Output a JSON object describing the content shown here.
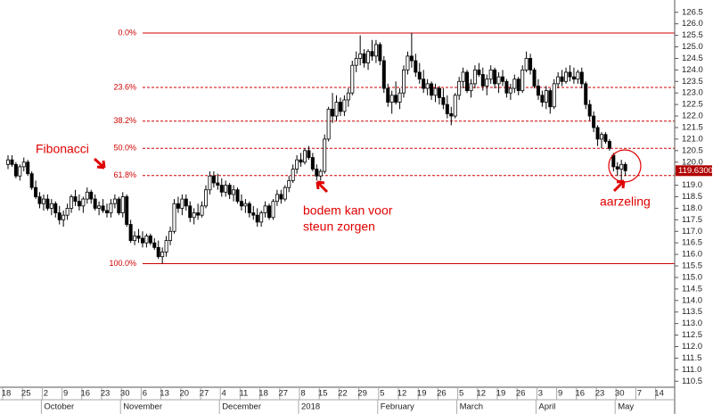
{
  "chart_data": {
    "type": "candlestick",
    "ylim": [
      110.2,
      126.8
    ],
    "yticks": [
      126.5,
      {
        "value": 126,
        "label": "126.0"
      },
      125.5,
      {
        "value": 125,
        "label": "125.0"
      },
      124.5,
      {
        "value": 124,
        "label": "124.0"
      },
      123.5,
      {
        "value": 123,
        "label": "123.0"
      },
      122.5,
      {
        "value": 122,
        "label": "122.0"
      },
      121.5,
      {
        "value": 121,
        "label": "121.0"
      },
      120.5,
      {
        "value": 120,
        "label": "120.0"
      },
      119.5,
      {
        "value": 119,
        "label": "119.0"
      },
      118.5,
      {
        "value": 118,
        "label": "118.0"
      },
      117.5,
      {
        "value": 117,
        "label": "117.0"
      },
      116.5,
      {
        "value": 116,
        "label": "116.0"
      },
      115.5,
      {
        "value": 115,
        "label": "115.0"
      },
      114.5,
      {
        "value": 114,
        "label": "114.0"
      },
      113.5,
      {
        "value": 113,
        "label": "113.0"
      },
      112.5,
      {
        "value": 112,
        "label": "112.0"
      },
      111.5,
      {
        "value": 111,
        "label": "111.0"
      },
      110.5
    ],
    "week_labels": [
      "18",
      "25",
      "2",
      "9",
      "16",
      "23",
      "30",
      "6",
      "13",
      "20",
      "27",
      "4",
      "11",
      "18",
      "27",
      "8",
      "15",
      "22",
      "29",
      "5",
      "12",
      "19",
      "26",
      "5",
      "12",
      "19",
      "26",
      "3",
      "9",
      "16",
      "23",
      "30",
      "7",
      "14"
    ],
    "month_labels": [
      null,
      null,
      "October",
      null,
      null,
      null,
      "November",
      null,
      null,
      null,
      null,
      "December",
      null,
      null,
      null,
      "2018",
      null,
      null,
      null,
      "February",
      null,
      null,
      null,
      "March",
      null,
      null,
      null,
      "April",
      null,
      null,
      null,
      "May",
      null,
      null
    ],
    "fib_levels": [
      {
        "label": "0.0%",
        "value": 125.6,
        "style": "solid"
      },
      {
        "label": "23.6%",
        "value": 123.24,
        "style": "dashed"
      },
      {
        "label": "38.2%",
        "value": 121.78,
        "style": "dashed"
      },
      {
        "label": "50.0%",
        "value": 120.6,
        "style": "dashed"
      },
      {
        "label": "61.8%",
        "value": 119.42,
        "style": "dashed"
      },
      {
        "label": "100.0%",
        "value": 115.6,
        "style": "solid"
      }
    ],
    "fib_color": "#d00000",
    "up_color": "#ffffff",
    "down_color": "#000000",
    "last_price": {
      "value": 119.63,
      "label": "119.6300"
    },
    "annotations": [
      "Fibonacci",
      "bodem kan voor",
      "steun zorgen",
      "aarzeling"
    ],
    "ohlc": [
      [
        119.9,
        120.3,
        119.7,
        120.1
      ],
      [
        120.1,
        120.3,
        119.8,
        119.9
      ],
      [
        119.9,
        120.0,
        119.3,
        119.4
      ],
      [
        119.4,
        119.9,
        119.2,
        119.8
      ],
      [
        119.8,
        120.2,
        119.6,
        120.0
      ],
      [
        120.0,
        120.1,
        119.4,
        119.5
      ],
      [
        119.5,
        119.6,
        118.8,
        118.9
      ],
      [
        118.9,
        119.2,
        118.4,
        118.5
      ],
      [
        118.5,
        118.7,
        118.0,
        118.2
      ],
      [
        118.2,
        118.6,
        117.9,
        118.4
      ],
      [
        118.4,
        118.6,
        117.9,
        118.0
      ],
      [
        118.0,
        118.4,
        117.7,
        118.2
      ],
      [
        118.2,
        118.3,
        117.6,
        117.8
      ],
      [
        117.8,
        118.1,
        117.3,
        117.5
      ],
      [
        117.5,
        117.9,
        117.2,
        117.7
      ],
      [
        117.7,
        118.2,
        117.5,
        118.0
      ],
      [
        118.0,
        118.6,
        117.8,
        118.5
      ],
      [
        118.5,
        118.8,
        118.1,
        118.3
      ],
      [
        118.3,
        118.6,
        117.9,
        118.1
      ],
      [
        118.1,
        118.5,
        117.8,
        118.4
      ],
      [
        118.4,
        118.9,
        118.2,
        118.7
      ],
      [
        118.7,
        118.8,
        118.2,
        118.4
      ],
      [
        118.4,
        118.6,
        117.9,
        118.0
      ],
      [
        118.0,
        118.3,
        117.7,
        118.1
      ],
      [
        118.1,
        118.4,
        117.8,
        117.9
      ],
      [
        117.9,
        118.2,
        117.6,
        117.8
      ],
      [
        117.8,
        118.4,
        117.6,
        118.2
      ],
      [
        118.2,
        118.6,
        118.0,
        118.4
      ],
      [
        118.4,
        118.5,
        117.7,
        117.8
      ],
      [
        117.8,
        118.7,
        117.6,
        118.5
      ],
      [
        118.5,
        118.6,
        117.2,
        117.3
      ],
      [
        117.3,
        117.5,
        116.5,
        116.6
      ],
      [
        116.6,
        117.0,
        116.4,
        116.8
      ],
      [
        116.8,
        117.1,
        116.5,
        116.7
      ],
      [
        116.7,
        117.0,
        116.3,
        116.5
      ],
      [
        116.5,
        116.9,
        116.3,
        116.8
      ],
      [
        116.8,
        116.9,
        116.4,
        116.5
      ],
      [
        116.5,
        116.7,
        116.2,
        116.3
      ],
      [
        116.3,
        116.6,
        115.8,
        115.9
      ],
      [
        115.9,
        116.3,
        115.6,
        116.1
      ],
      [
        116.1,
        116.8,
        115.9,
        116.6
      ],
      [
        116.6,
        117.2,
        116.4,
        117.0
      ],
      [
        117.0,
        118.4,
        116.9,
        118.2
      ],
      [
        118.2,
        118.5,
        117.8,
        118.0
      ],
      [
        118.0,
        118.6,
        117.7,
        118.4
      ],
      [
        118.4,
        118.6,
        117.9,
        118.1
      ],
      [
        118.1,
        118.3,
        117.4,
        117.6
      ],
      [
        117.6,
        118.0,
        117.3,
        117.8
      ],
      [
        117.8,
        118.2,
        117.5,
        117.7
      ],
      [
        117.7,
        118.3,
        117.6,
        118.1
      ],
      [
        118.1,
        119.0,
        118.0,
        118.8
      ],
      [
        118.8,
        119.6,
        118.6,
        119.4
      ],
      [
        119.4,
        119.6,
        118.9,
        119.1
      ],
      [
        119.1,
        119.5,
        118.8,
        119.0
      ],
      [
        119.0,
        119.3,
        118.5,
        118.7
      ],
      [
        118.7,
        119.2,
        118.5,
        119.0
      ],
      [
        119.0,
        119.1,
        118.4,
        118.6
      ],
      [
        118.6,
        119.0,
        118.3,
        118.8
      ],
      [
        118.8,
        118.9,
        118.2,
        118.3
      ],
      [
        118.3,
        118.6,
        117.9,
        118.1
      ],
      [
        118.1,
        118.4,
        117.8,
        118.2
      ],
      [
        118.2,
        118.3,
        117.6,
        117.8
      ],
      [
        117.8,
        118.1,
        117.5,
        117.7
      ],
      [
        117.7,
        118.0,
        117.2,
        117.4
      ],
      [
        117.4,
        117.9,
        117.2,
        117.8
      ],
      [
        117.8,
        118.3,
        117.6,
        118.1
      ],
      [
        118.1,
        118.2,
        117.5,
        117.6
      ],
      [
        117.6,
        118.4,
        117.5,
        118.3
      ],
      [
        118.3,
        118.8,
        118.1,
        118.6
      ],
      [
        118.6,
        118.8,
        118.2,
        118.4
      ],
      [
        118.4,
        119.0,
        118.3,
        118.9
      ],
      [
        118.9,
        119.4,
        118.7,
        119.2
      ],
      [
        119.2,
        119.9,
        119.1,
        119.7
      ],
      [
        119.7,
        120.3,
        119.5,
        120.1
      ],
      [
        120.1,
        120.4,
        119.8,
        120.0
      ],
      [
        120.0,
        120.6,
        119.9,
        120.5
      ],
      [
        120.5,
        120.7,
        120.1,
        120.2
      ],
      [
        120.2,
        120.4,
        119.6,
        119.7
      ],
      [
        119.7,
        119.9,
        119.2,
        119.4
      ],
      [
        119.4,
        119.7,
        119.2,
        119.6
      ],
      [
        119.6,
        121.2,
        119.5,
        121.0
      ],
      [
        121.0,
        122.4,
        120.9,
        122.3
      ],
      [
        122.3,
        123.0,
        121.7,
        122.0
      ],
      [
        122.0,
        122.9,
        121.8,
        122.6
      ],
      [
        122.6,
        122.8,
        122.0,
        122.2
      ],
      [
        122.2,
        122.9,
        122.0,
        122.7
      ],
      [
        122.7,
        123.2,
        122.4,
        123.0
      ],
      [
        123.0,
        124.4,
        122.9,
        124.2
      ],
      [
        124.2,
        124.8,
        123.9,
        124.5
      ],
      [
        124.5,
        125.5,
        124.2,
        124.7
      ],
      [
        124.7,
        124.9,
        124.1,
        124.3
      ],
      [
        124.3,
        124.9,
        124.0,
        124.8
      ],
      [
        124.8,
        125.3,
        124.4,
        124.6
      ],
      [
        124.6,
        125.3,
        124.3,
        125.1
      ],
      [
        125.1,
        125.2,
        124.2,
        124.4
      ],
      [
        124.4,
        124.6,
        123.0,
        123.2
      ],
      [
        123.2,
        123.4,
        122.4,
        122.6
      ],
      [
        122.6,
        123.1,
        122.1,
        122.9
      ],
      [
        122.9,
        123.5,
        122.5,
        122.6
      ],
      [
        122.6,
        123.2,
        122.3,
        123.0
      ],
      [
        123.0,
        124.2,
        122.8,
        124.0
      ],
      [
        124.0,
        124.8,
        123.8,
        124.6
      ],
      [
        124.6,
        125.6,
        124.1,
        124.4
      ],
      [
        124.4,
        124.7,
        123.7,
        123.9
      ],
      [
        123.9,
        124.3,
        123.4,
        123.6
      ],
      [
        123.6,
        124.0,
        123.0,
        123.2
      ],
      [
        123.2,
        123.6,
        122.9,
        123.4
      ],
      [
        123.4,
        123.5,
        122.7,
        122.9
      ],
      [
        122.9,
        123.4,
        122.6,
        123.2
      ],
      [
        123.2,
        123.3,
        122.5,
        122.8
      ],
      [
        122.8,
        123.2,
        122.3,
        122.5
      ],
      [
        122.5,
        122.9,
        121.9,
        122.1
      ],
      [
        122.1,
        122.4,
        121.6,
        122.0
      ],
      [
        122.0,
        123.0,
        121.9,
        122.9
      ],
      [
        122.9,
        123.7,
        122.7,
        123.5
      ],
      [
        123.5,
        124.1,
        123.2,
        123.9
      ],
      [
        123.9,
        124.0,
        123.0,
        123.1
      ],
      [
        123.1,
        123.6,
        122.8,
        123.4
      ],
      [
        123.4,
        124.2,
        123.2,
        124.0
      ],
      [
        124.0,
        124.3,
        123.7,
        123.8
      ],
      [
        123.8,
        124.1,
        123.1,
        123.3
      ],
      [
        123.3,
        123.8,
        122.9,
        123.6
      ],
      [
        123.6,
        124.2,
        123.4,
        124.0
      ],
      [
        124.0,
        124.1,
        123.2,
        123.4
      ],
      [
        123.4,
        123.9,
        123.0,
        123.7
      ],
      [
        123.7,
        124.0,
        123.3,
        123.5
      ],
      [
        123.5,
        123.6,
        122.8,
        123.0
      ],
      [
        123.0,
        123.4,
        122.7,
        123.2
      ],
      [
        123.2,
        123.8,
        123.0,
        123.6
      ],
      [
        123.6,
        123.7,
        122.9,
        123.1
      ],
      [
        123.1,
        124.2,
        123.0,
        124.0
      ],
      [
        124.0,
        124.8,
        123.9,
        124.5
      ],
      [
        124.5,
        124.7,
        123.8,
        124.0
      ],
      [
        124.0,
        124.1,
        123.2,
        123.3
      ],
      [
        123.3,
        123.6,
        122.7,
        122.9
      ],
      [
        122.9,
        123.1,
        122.4,
        122.6
      ],
      [
        122.6,
        123.3,
        122.3,
        123.1
      ],
      [
        123.1,
        123.2,
        122.1,
        122.4
      ],
      [
        122.4,
        123.6,
        122.3,
        123.4
      ],
      [
        123.4,
        123.9,
        123.2,
        123.7
      ],
      [
        123.7,
        124.0,
        123.3,
        123.5
      ],
      [
        123.5,
        124.1,
        123.4,
        123.9
      ],
      [
        123.9,
        124.2,
        123.5,
        123.7
      ],
      [
        123.7,
        124.1,
        123.4,
        123.6
      ],
      [
        123.6,
        124.0,
        123.4,
        123.9
      ],
      [
        123.9,
        124.1,
        123.2,
        123.4
      ],
      [
        123.4,
        123.5,
        122.3,
        122.5
      ],
      [
        122.5,
        122.7,
        121.8,
        122.0
      ],
      [
        122.0,
        122.2,
        121.3,
        121.5
      ],
      [
        121.5,
        121.6,
        120.7,
        121.0
      ],
      [
        121.0,
        121.3,
        120.6,
        121.2
      ],
      [
        121.2,
        121.3,
        120.8,
        120.9
      ],
      [
        120.9,
        121.0,
        120.5,
        120.6
      ],
      [
        120.3,
        120.4,
        119.6,
        119.8
      ],
      [
        119.8,
        120.0,
        119.4,
        119.7
      ],
      [
        119.7,
        120.1,
        119.2,
        119.9
      ],
      [
        119.9,
        120.0,
        119.4,
        119.63
      ]
    ]
  }
}
